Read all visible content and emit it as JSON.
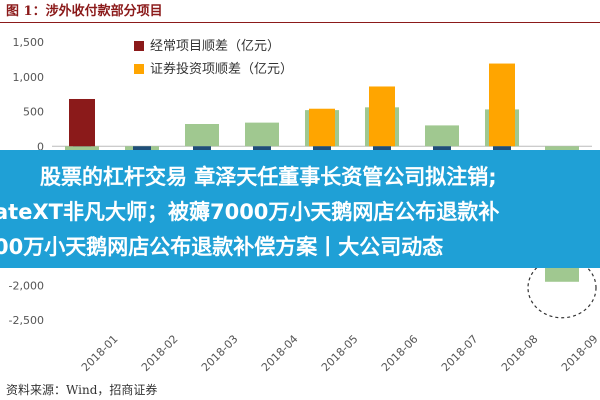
{
  "figure_title": "图 1：涉外收付款部分项目",
  "source": "资料来源：Wind，招商证券",
  "overlay_text": [
    "股票的杠杆交易 章泽天任董事长资管公司拟注销;",
    "ateXT非凡大师；被薅7000万小天鹅网店公布退款补",
    "00万小天鹅网店公布退款补偿方案丨大公司动态"
  ],
  "colors": {
    "series_current": "#8B1A1A",
    "series_securities": "#FFA500",
    "series_wide": "#A0C890",
    "series_narrow": "#1F4E79",
    "banner": "#1fa0d6",
    "title": "#8B1A1A"
  },
  "chart_data": {
    "type": "bar",
    "categories": [
      "2018-01",
      "2018-02",
      "2018-03",
      "2018-04",
      "2018-05",
      "2018-06",
      "2018-07",
      "2018-08",
      "2018-09"
    ],
    "ylim": [
      -2500,
      1500
    ],
    "yticks": [
      "1,500",
      "1,000",
      "500",
      "0",
      "-500",
      "-1,000",
      "-1,500",
      "-2,000",
      "-2,500"
    ],
    "ytick_values": [
      1500,
      1000,
      500,
      0,
      -500,
      -1000,
      -1500,
      -2000,
      -2500
    ],
    "grid": false,
    "legend_position": "top-left",
    "series": [
      {
        "name": "经常项目顺差（亿元）",
        "values": [
          680,
          null,
          null,
          null,
          null,
          null,
          null,
          null,
          null
        ],
        "color": "#8B1A1A"
      },
      {
        "name": "证券投资项顺差（亿元）",
        "values": [
          null,
          null,
          null,
          null,
          540,
          860,
          null,
          1190,
          null
        ],
        "color": "#FFA500"
      },
      {
        "name": "",
        "values": [
          -90,
          -200,
          320,
          340,
          520,
          560,
          300,
          530,
          -1950
        ],
        "color": "#A0C890"
      },
      {
        "name": "",
        "values": [
          540,
          -1150,
          -400,
          -600,
          -1000,
          -700,
          -1200,
          -1300,
          null
        ],
        "color": "#1F4E79"
      }
    ],
    "annotation": "dashed circle around 2018-09 bar"
  }
}
